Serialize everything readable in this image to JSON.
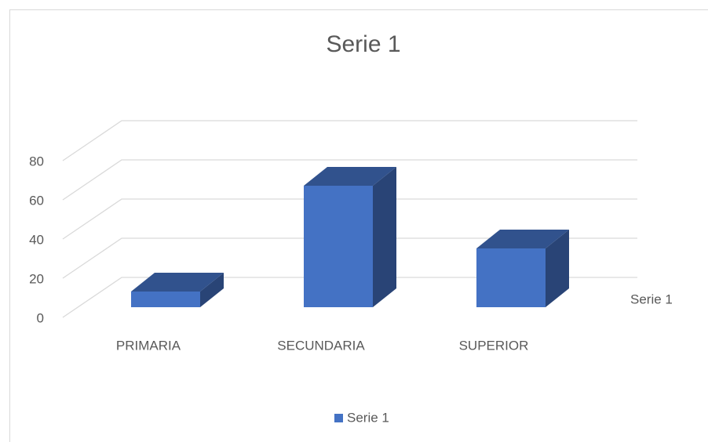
{
  "chart_data": {
    "type": "bar3d",
    "title": "Serie 1",
    "categories": [
      "PRIMARIA",
      "SECUNDARIA",
      "SUPERIOR"
    ],
    "series": [
      {
        "name": "Serie 1",
        "color": "#4472c4",
        "values": [
          8,
          62,
          30
        ]
      }
    ],
    "ylim": [
      0,
      80
    ],
    "yticks": [
      0,
      20,
      40,
      60,
      80
    ],
    "grid": true,
    "legend": "bottom"
  }
}
